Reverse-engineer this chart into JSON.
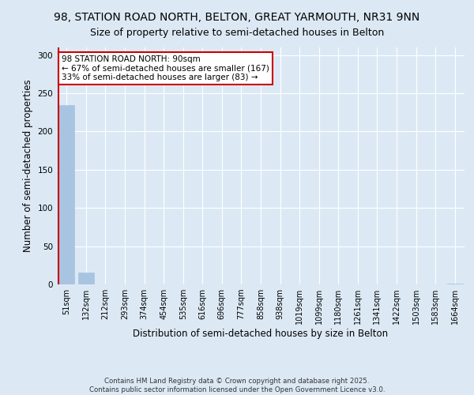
{
  "title": "98, STATION ROAD NORTH, BELTON, GREAT YARMOUTH, NR31 9NN",
  "subtitle": "Size of property relative to semi-detached houses in Belton",
  "xlabel": "Distribution of semi-detached houses by size in Belton",
  "ylabel": "Number of semi-detached properties",
  "categories": [
    "51sqm",
    "132sqm",
    "212sqm",
    "293sqm",
    "374sqm",
    "454sqm",
    "535sqm",
    "616sqm",
    "696sqm",
    "777sqm",
    "858sqm",
    "938sqm",
    "1019sqm",
    "1099sqm",
    "1180sqm",
    "1261sqm",
    "1341sqm",
    "1422sqm",
    "1503sqm",
    "1583sqm",
    "1664sqm"
  ],
  "values": [
    235,
    15,
    0,
    0,
    0,
    0,
    0,
    0,
    0,
    0,
    0,
    0,
    0,
    0,
    0,
    0,
    0,
    0,
    0,
    0,
    1
  ],
  "bar_color": "#a8c4e0",
  "property_bin_index": 0,
  "annotation_text": "98 STATION ROAD NORTH: 90sqm\n← 67% of semi-detached houses are smaller (167)\n33% of semi-detached houses are larger (83) →",
  "vline_color": "#cc0000",
  "annotation_box_color": "#cc0000",
  "ylim": [
    0,
    310
  ],
  "yticks": [
    0,
    50,
    100,
    150,
    200,
    250,
    300
  ],
  "background_color": "#dce9f5",
  "footer_text": "Contains HM Land Registry data © Crown copyright and database right 2025.\nContains public sector information licensed under the Open Government Licence v3.0.",
  "title_fontsize": 10,
  "subtitle_fontsize": 9,
  "tick_fontsize": 7,
  "ylabel_fontsize": 8.5,
  "xlabel_fontsize": 8.5,
  "annotation_fontsize": 7.5
}
